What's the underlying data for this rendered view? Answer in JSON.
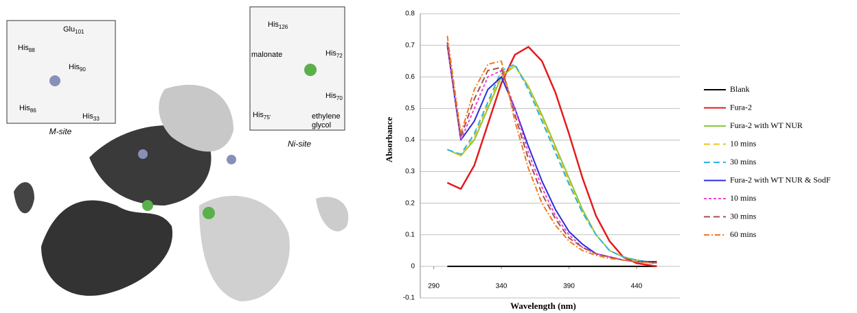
{
  "figure": {
    "m_site": {
      "caption": "M-site",
      "labels": [
        {
          "text": "Glu",
          "sub": "101"
        },
        {
          "text": "His",
          "sub": "88"
        },
        {
          "text": "His",
          "sub": "90"
        },
        {
          "text": "His",
          "sub": "86"
        },
        {
          "text": "His",
          "sub": "33"
        }
      ]
    },
    "ni_site": {
      "caption": "Ni-site",
      "labels": [
        {
          "text": "His",
          "sub": "126"
        },
        {
          "text": "His",
          "sub": "72"
        },
        {
          "text": "malonate",
          "sub": null
        },
        {
          "text": "His",
          "sub": "70"
        },
        {
          "text": "His",
          "sub": "75'"
        },
        {
          "text": "ethylene",
          "sub": null
        },
        {
          "text": "glycol",
          "sub": null
        }
      ]
    }
  },
  "chart_data": {
    "type": "line",
    "x_label": "Wavelength (nm)",
    "y_label": "Absorbance",
    "xlim": [
      280,
      472
    ],
    "xticks": [
      290,
      340,
      390,
      440
    ],
    "ylim": [
      -0.1,
      0.8
    ],
    "yticks": [
      -0.1,
      0,
      0.1,
      0.2,
      0.3,
      0.4,
      0.5,
      0.6,
      0.7,
      0.8
    ],
    "grid": true,
    "legend": "right",
    "x": [
      300,
      310,
      320,
      330,
      340,
      350,
      360,
      370,
      380,
      390,
      400,
      410,
      420,
      430,
      440,
      455
    ],
    "series": [
      {
        "name": "Blank",
        "color": "#000000",
        "dash": "solid",
        "values": [
          0,
          0,
          0,
          0,
          0,
          0,
          0,
          0,
          0,
          0,
          0,
          0,
          0,
          0,
          0,
          0
        ]
      },
      {
        "name": "Fura-2",
        "color": "#e41a1c",
        "dash": "solid",
        "values": [
          0.265,
          0.245,
          0.32,
          0.45,
          0.58,
          0.67,
          0.695,
          0.65,
          0.55,
          0.42,
          0.28,
          0.16,
          0.08,
          0.03,
          0.01,
          0
        ]
      },
      {
        "name": "Fura-2 with WT NUR",
        "color": "#8cc63f",
        "dash": "solid",
        "values": [
          0.37,
          0.35,
          0.4,
          0.5,
          0.6,
          0.635,
          0.57,
          0.48,
          0.38,
          0.28,
          0.18,
          0.1,
          0.05,
          0.03,
          0.02,
          0.01
        ]
      },
      {
        "name": "10 mins",
        "color": "#f2c21a",
        "dash": "long",
        "values": [
          0.37,
          0.35,
          0.41,
          0.51,
          0.61,
          0.635,
          0.565,
          0.47,
          0.37,
          0.27,
          0.17,
          0.1,
          0.05,
          0.03,
          0.02,
          0.01
        ]
      },
      {
        "name": "30 mins",
        "color": "#2ab7e6",
        "dash": "long",
        "values": [
          0.37,
          0.355,
          0.42,
          0.52,
          0.62,
          0.64,
          0.56,
          0.46,
          0.36,
          0.26,
          0.17,
          0.1,
          0.05,
          0.03,
          0.02,
          0.01
        ]
      },
      {
        "name": "Fura-2 with WT NUR & SodF",
        "color": "#2b2bdc",
        "dash": "solid",
        "values": [
          0.7,
          0.4,
          0.46,
          0.56,
          0.6,
          0.5,
          0.38,
          0.27,
          0.18,
          0.11,
          0.07,
          0.04,
          0.03,
          0.02,
          0.015,
          0.015
        ]
      },
      {
        "name": "10 mins",
        "color": "#ee44cc",
        "dash": "short",
        "values": [
          0.7,
          0.4,
          0.5,
          0.6,
          0.62,
          0.5,
          0.36,
          0.25,
          0.16,
          0.1,
          0.06,
          0.04,
          0.03,
          0.02,
          0.015,
          0.01
        ]
      },
      {
        "name": "30 mins",
        "color": "#a0504a",
        "dash": "long",
        "values": [
          0.71,
          0.41,
          0.53,
          0.62,
          0.63,
          0.48,
          0.34,
          0.23,
          0.15,
          0.09,
          0.06,
          0.04,
          0.03,
          0.02,
          0.015,
          0.01
        ]
      },
      {
        "name": "60 mins",
        "color": "#f07820",
        "dash": "dashdot",
        "values": [
          0.73,
          0.42,
          0.56,
          0.64,
          0.65,
          0.46,
          0.31,
          0.2,
          0.13,
          0.08,
          0.05,
          0.035,
          0.025,
          0.02,
          0.015,
          0.01
        ]
      }
    ]
  }
}
